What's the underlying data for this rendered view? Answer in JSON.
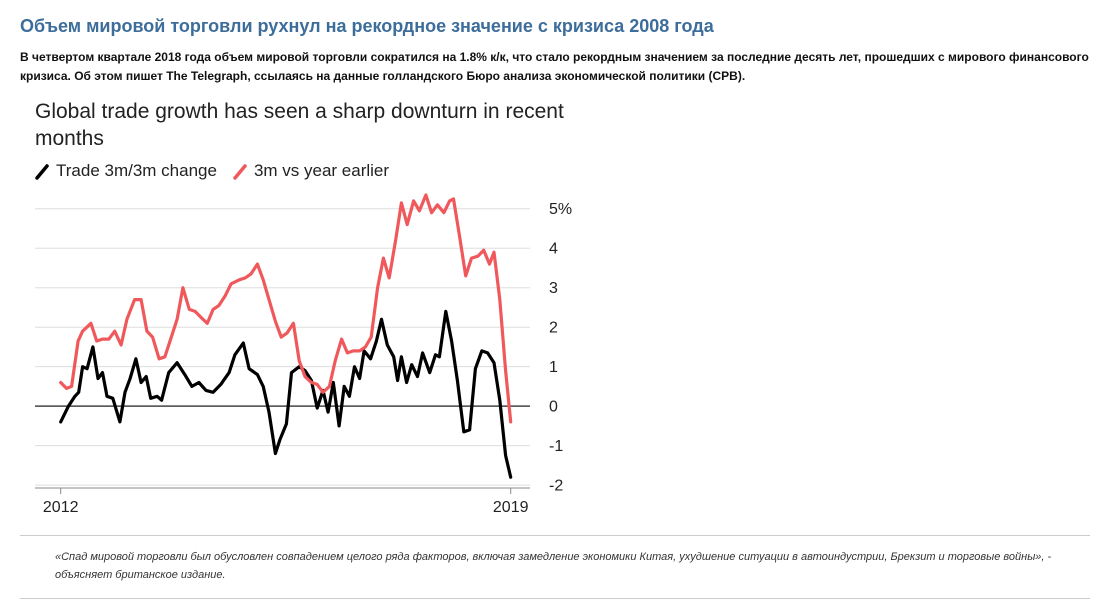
{
  "header": {
    "title": "Объем мировой торговли рухнул на рекордное значение с кризиса 2008 года"
  },
  "lead": "В четвертом квартале 2018 года объем мировой торговли сократился на 1.8% к/к, что стало рекордным значением за последние десять лет, прошедших с мирового финансового кризиса. Об этом пишет The Telegraph, ссылаясь на данные голландского Бюро анализа экономической политики (CPB).",
  "chart_data": {
    "type": "line",
    "title": "Global trade growth has seen a sharp downturn in recent months",
    "xlim": [
      2011.6,
      2019.3
    ],
    "xticks": [
      2012,
      2019
    ],
    "ylim": [
      -2.2,
      5.4
    ],
    "yticks": [
      {
        "value": 5,
        "label": "5%"
      },
      4,
      3,
      2,
      1,
      0,
      -1,
      -2
    ],
    "grid": true,
    "series": [
      {
        "name": "Trade 3m/3m change",
        "color": "#000000",
        "x": [
          2012.0,
          2012.12,
          2012.22,
          2012.28,
          2012.34,
          2012.41,
          2012.5,
          2012.58,
          2012.65,
          2012.72,
          2012.81,
          2012.92,
          2013.0,
          2013.08,
          2013.17,
          2013.25,
          2013.33,
          2013.4,
          2013.5,
          2013.57,
          2013.68,
          2013.81,
          2013.93,
          2014.04,
          2014.15,
          2014.26,
          2014.37,
          2014.49,
          2014.62,
          2014.71,
          2014.84,
          2014.93,
          2015.06,
          2015.15,
          2015.24,
          2015.34,
          2015.41,
          2015.51,
          2015.59,
          2015.71,
          2015.8,
          2015.9,
          2015.99,
          2016.08,
          2016.16,
          2016.24,
          2016.33,
          2016.41,
          2016.49,
          2016.57,
          2016.65,
          2016.72,
          2016.82,
          2016.91,
          2016.99,
          2017.08,
          2017.18,
          2017.24,
          2017.3,
          2017.38,
          2017.46,
          2017.55,
          2017.63,
          2017.74,
          2017.83,
          2017.89,
          2017.99,
          2018.08,
          2018.17,
          2018.27,
          2018.36,
          2018.45,
          2018.55,
          2018.64,
          2018.74,
          2018.83,
          2018.92,
          2019.0
        ],
        "values": [
          -0.4,
          0,
          0.25,
          0.35,
          1.0,
          0.95,
          1.5,
          0.7,
          0.85,
          0.25,
          0.2,
          -0.4,
          0.35,
          0.7,
          1.2,
          0.6,
          0.75,
          0.2,
          0.25,
          0.15,
          0.85,
          1.1,
          0.8,
          0.5,
          0.6,
          0.4,
          0.35,
          0.55,
          0.85,
          1.3,
          1.6,
          0.95,
          0.8,
          0.5,
          -0.15,
          -1.2,
          -0.85,
          -0.45,
          0.85,
          1.0,
          0.9,
          0.65,
          -0.05,
          0.4,
          -0.15,
          0.6,
          -0.5,
          0.5,
          0.25,
          1.0,
          0.7,
          1.4,
          1.2,
          1.65,
          2.2,
          1.55,
          1.25,
          0.65,
          1.25,
          0.6,
          1.05,
          0.75,
          1.35,
          0.85,
          1.3,
          1.25,
          2.4,
          1.65,
          0.65,
          -0.65,
          -0.6,
          0.95,
          1.4,
          1.35,
          1.1,
          0.15,
          -1.25,
          -1.8
        ]
      },
      {
        "name": "3m vs year earlier",
        "color": "#f0595b",
        "x": [
          2012.0,
          2012.09,
          2012.17,
          2012.27,
          2012.34,
          2012.47,
          2012.56,
          2012.65,
          2012.75,
          2012.84,
          2012.94,
          2013.03,
          2013.15,
          2013.25,
          2013.34,
          2013.43,
          2013.53,
          2013.62,
          2013.72,
          2013.81,
          2013.9,
          2014.0,
          2014.09,
          2014.18,
          2014.28,
          2014.37,
          2014.46,
          2014.56,
          2014.65,
          2014.78,
          2014.87,
          2014.96,
          2015.06,
          2015.15,
          2015.24,
          2015.34,
          2015.43,
          2015.52,
          2015.62,
          2015.71,
          2015.8,
          2015.9,
          2015.99,
          2016.08,
          2016.18,
          2016.27,
          2016.37,
          2016.46,
          2016.55,
          2016.65,
          2016.74,
          2016.83,
          2016.93,
          2017.02,
          2017.11,
          2017.21,
          2017.3,
          2017.39,
          2017.49,
          2017.58,
          2017.68,
          2017.77,
          2017.86,
          2017.96,
          2018.05,
          2018.11,
          2018.21,
          2018.3,
          2018.39,
          2018.49,
          2018.58,
          2018.67,
          2018.74,
          2018.83,
          2018.92,
          2019.0
        ],
        "values": [
          0.6,
          0.45,
          0.5,
          1.65,
          1.9,
          2.1,
          1.65,
          1.7,
          1.7,
          1.9,
          1.55,
          2.2,
          2.7,
          2.7,
          1.9,
          1.75,
          1.2,
          1.25,
          1.75,
          2.2,
          3.0,
          2.45,
          2.4,
          2.25,
          2.1,
          2.45,
          2.55,
          2.8,
          3.1,
          3.2,
          3.25,
          3.35,
          3.6,
          3.2,
          2.7,
          2.15,
          1.75,
          1.85,
          2.1,
          1.15,
          0.75,
          0.6,
          0.55,
          0.35,
          0.5,
          1.15,
          1.7,
          1.35,
          1.4,
          1.4,
          1.5,
          1.75,
          3.0,
          3.75,
          3.25,
          4.2,
          5.15,
          4.6,
          5.2,
          4.95,
          5.35,
          4.9,
          5.1,
          4.9,
          5.2,
          5.25,
          4.25,
          3.3,
          3.75,
          3.8,
          3.95,
          3.6,
          3.9,
          2.7,
          0.9,
          -0.4
        ]
      }
    ]
  },
  "quote": "«Спад мировой торговли был обусловлен совпадением целого ряда факторов, включая замедление экономики Китая, ухудшение ситуации в автоиндустрии, Брекзит и торговые войны», - объясняет британское издание."
}
